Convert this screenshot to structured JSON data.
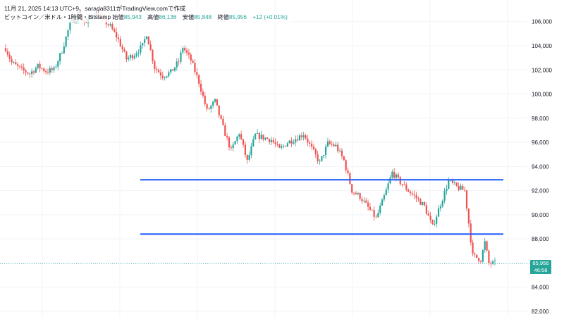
{
  "header": {
    "line1": "11月 21, 2025 14:13 UTC+9、sarada8311がTradingView.comで作成",
    "symbol": "ビットコイン／米ドル・1時間・Bitstamp",
    "open_label": "始値",
    "open_value": "85,943",
    "high_label": "高値",
    "high_value": "86,136",
    "low_label": "安値",
    "low_value": "85,848",
    "close_label": "終値",
    "close_value": "85,956",
    "change": "+12 (+0.01%)"
  },
  "colors": {
    "up": "#26a69a",
    "down": "#ef5350",
    "level_line": "#2962ff",
    "last_price_line": "#26a69a",
    "grid": "#f0f3fa"
  },
  "price_label": {
    "price": "85,956",
    "countdown": "46:58"
  },
  "chart_data": {
    "type": "candlestick",
    "timeframe": "1時間",
    "ylim": [
      82000,
      107000
    ],
    "y_ticks": [
      "82,000",
      "84,000",
      "86,000",
      "88,000",
      "90,000",
      "92,000",
      "94,000",
      "96,000",
      "98,000",
      "100,000",
      "102,000",
      "104,000",
      "106,000"
    ],
    "y_tick_values": [
      82000,
      84000,
      86000,
      88000,
      90000,
      92000,
      94000,
      96000,
      98000,
      100000,
      102000,
      104000,
      106000
    ],
    "grid": true,
    "horizontal_levels": [
      92900,
      88400
    ],
    "last_price": 85956,
    "price_path": [
      [
        0,
        103800
      ],
      [
        3,
        102600
      ],
      [
        8,
        102000
      ],
      [
        12,
        101700
      ],
      [
        16,
        102300
      ],
      [
        20,
        101900
      ],
      [
        24,
        102000
      ],
      [
        28,
        103600
      ],
      [
        32,
        105800
      ],
      [
        36,
        106500
      ],
      [
        40,
        105800
      ],
      [
        44,
        106700
      ],
      [
        48,
        106200
      ],
      [
        52,
        105600
      ],
      [
        56,
        104500
      ],
      [
        60,
        102900
      ],
      [
        64,
        103300
      ],
      [
        68,
        104000
      ],
      [
        70,
        105000
      ],
      [
        74,
        102200
      ],
      [
        78,
        101500
      ],
      [
        82,
        101800
      ],
      [
        86,
        102700
      ],
      [
        88,
        103900
      ],
      [
        92,
        102800
      ],
      [
        96,
        101000
      ],
      [
        100,
        98600
      ],
      [
        104,
        99400
      ],
      [
        108,
        97200
      ],
      [
        112,
        95300
      ],
      [
        116,
        96800
      ],
      [
        120,
        94400
      ],
      [
        124,
        96600
      ],
      [
        128,
        96400
      ],
      [
        132,
        96200
      ],
      [
        136,
        95400
      ],
      [
        140,
        96000
      ],
      [
        144,
        96300
      ],
      [
        148,
        96700
      ],
      [
        152,
        95500
      ],
      [
        156,
        94300
      ],
      [
        160,
        95900
      ],
      [
        164,
        95700
      ],
      [
        168,
        94500
      ],
      [
        172,
        92000
      ],
      [
        176,
        91500
      ],
      [
        180,
        90600
      ],
      [
        184,
        89700
      ],
      [
        188,
        91500
      ],
      [
        192,
        93500
      ],
      [
        196,
        92700
      ],
      [
        200,
        92000
      ],
      [
        204,
        91400
      ],
      [
        208,
        90700
      ],
      [
        212,
        89000
      ],
      [
        216,
        90900
      ],
      [
        220,
        92800
      ],
      [
        224,
        92300
      ],
      [
        228,
        92000
      ],
      [
        232,
        86600
      ],
      [
        236,
        86300
      ],
      [
        238,
        87700
      ],
      [
        240,
        86000
      ],
      [
        243,
        85956
      ]
    ]
  }
}
